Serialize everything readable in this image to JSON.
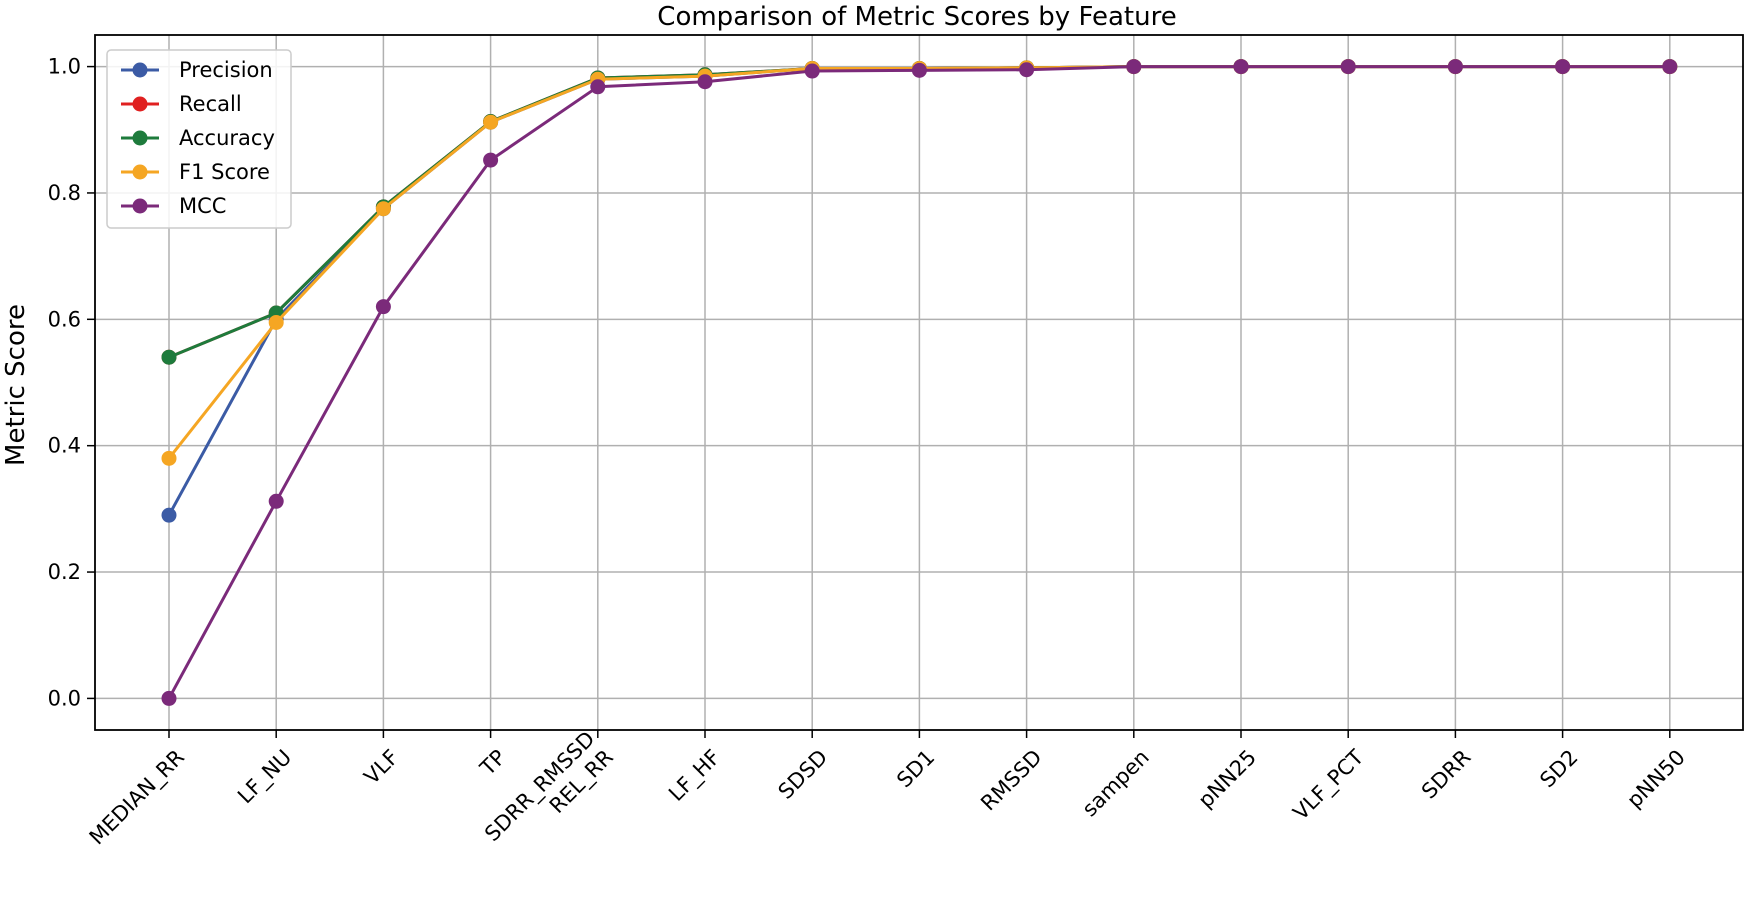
{
  "chart_data": {
    "type": "line",
    "title": "Comparison of Metric Scores by Feature",
    "xlabel": "",
    "ylabel": "Metric Score",
    "ylim": [
      -0.05,
      1.05
    ],
    "yticks": [
      "0.0",
      "0.2",
      "0.4",
      "0.6",
      "0.8",
      "1.0"
    ],
    "grid": true,
    "legend_position": "top-left",
    "categories": [
      "MEDIAN_RR",
      "LF_NU",
      "VLF",
      "TP",
      "SDRR_RMSSD\nREL_RR",
      "LF_HF",
      "SDSD",
      "SD1",
      "RMSSD",
      "sampen",
      "pNN25",
      "VLF_PCT",
      "SDRR",
      "SD2",
      "pNN50"
    ],
    "series": [
      {
        "name": "Precision",
        "color": "#3b5ba5",
        "values": [
          0.29,
          0.6,
          0.775,
          0.912,
          0.98,
          0.985,
          0.997,
          0.997,
          0.998,
          1.0,
          1.0,
          1.0,
          1.0,
          1.0,
          1.0
        ]
      },
      {
        "name": "Recall",
        "color": "#e02020",
        "values": [
          0.54,
          0.61,
          0.778,
          0.913,
          0.982,
          0.987,
          0.997,
          0.997,
          0.998,
          1.0,
          1.0,
          1.0,
          1.0,
          1.0,
          1.0
        ]
      },
      {
        "name": "Accuracy",
        "color": "#1e7b3c",
        "values": [
          0.54,
          0.61,
          0.778,
          0.913,
          0.982,
          0.987,
          0.997,
          0.997,
          0.998,
          1.0,
          1.0,
          1.0,
          1.0,
          1.0,
          1.0
        ]
      },
      {
        "name": "F1 Score",
        "color": "#f5a623",
        "values": [
          0.38,
          0.595,
          0.775,
          0.912,
          0.98,
          0.985,
          0.997,
          0.997,
          0.998,
          1.0,
          1.0,
          1.0,
          1.0,
          1.0,
          1.0
        ]
      },
      {
        "name": "MCC",
        "color": "#7b2a7a",
        "values": [
          0.0,
          0.312,
          0.62,
          0.852,
          0.968,
          0.976,
          0.993,
          0.994,
          0.995,
          1.0,
          1.0,
          1.0,
          1.0,
          1.0,
          1.0
        ]
      }
    ]
  }
}
